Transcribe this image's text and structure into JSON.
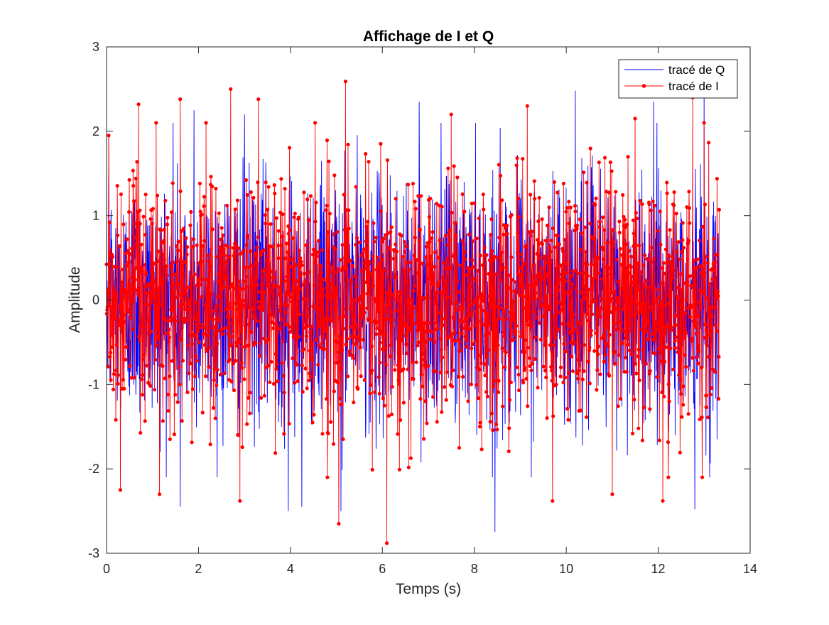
{
  "chart_data": {
    "type": "line",
    "title": "Affichage de I et Q",
    "xlabel": "Temps (s)",
    "ylabel": "Amplitude",
    "xlim": [
      0,
      14
    ],
    "ylim": [
      -3,
      3
    ],
    "xticks": [
      0,
      2,
      4,
      6,
      8,
      10,
      12,
      14
    ],
    "yticks": [
      -3,
      -2,
      -1,
      0,
      1,
      2,
      3
    ],
    "xtick_labels": [
      "0",
      "2",
      "4",
      "6",
      "8",
      "10",
      "12",
      "14"
    ],
    "ytick_labels": [
      "-3",
      "-2",
      "-1",
      "0",
      "1",
      "2",
      "3"
    ],
    "grid": false,
    "legend_position": "top-right",
    "x_range_of_data": [
      0,
      13.33
    ],
    "sample_period_s": 0.0067,
    "series": [
      {
        "name": "tracé de Q",
        "color": "#0000ff",
        "marker": "none",
        "description": "dense noise-like signal, approx. Gaussian, std ~0.7",
        "peak_values": [
          {
            "x": 0.05,
            "y": 1.95
          },
          {
            "x": 1.45,
            "y": 2.1
          },
          {
            "x": 1.9,
            "y": 2.25
          },
          {
            "x": 3.0,
            "y": 2.2
          },
          {
            "x": 3.95,
            "y": 2.25
          },
          {
            "x": 6.8,
            "y": 2.35
          },
          {
            "x": 10.2,
            "y": 2.48
          },
          {
            "x": 11.9,
            "y": 2.35
          },
          {
            "x": 13.0,
            "y": 2.45
          },
          {
            "x": 3.95,
            "y": -2.5
          },
          {
            "x": 4.25,
            "y": -2.45
          },
          {
            "x": 5.1,
            "y": -2.5
          },
          {
            "x": 8.45,
            "y": -2.75
          },
          {
            "x": 12.8,
            "y": -2.48
          },
          {
            "x": 1.6,
            "y": -2.45
          }
        ]
      },
      {
        "name": "tracé de I",
        "color": "#ff0000",
        "marker": "point",
        "description": "dense noise-like signal drawn with point markers, approx. Gaussian, std ~0.7",
        "peak_values": [
          {
            "x": 0.05,
            "y": 1.95
          },
          {
            "x": 0.7,
            "y": 2.32
          },
          {
            "x": 1.6,
            "y": 2.38
          },
          {
            "x": 2.7,
            "y": 2.5
          },
          {
            "x": 3.3,
            "y": 2.38
          },
          {
            "x": 5.2,
            "y": 2.59
          },
          {
            "x": 7.5,
            "y": 2.2
          },
          {
            "x": 9.15,
            "y": 2.3
          },
          {
            "x": 11.5,
            "y": 2.15
          },
          {
            "x": 12.75,
            "y": 2.4
          },
          {
            "x": 0.3,
            "y": -2.25
          },
          {
            "x": 1.15,
            "y": -2.3
          },
          {
            "x": 2.9,
            "y": -2.38
          },
          {
            "x": 5.05,
            "y": -2.65
          },
          {
            "x": 6.1,
            "y": -2.88
          },
          {
            "x": 9.7,
            "y": -2.38
          },
          {
            "x": 12.1,
            "y": -2.38
          },
          {
            "x": 11.0,
            "y": -2.3
          }
        ]
      }
    ]
  }
}
